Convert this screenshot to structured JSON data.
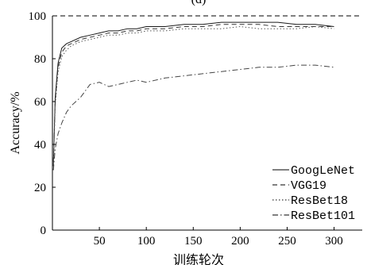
{
  "chart_data": {
    "type": "line",
    "title": "(d) ",
    "xlabel": "训练轮次",
    "ylabel": "Accuracy/%",
    "xlim": [
      0,
      330
    ],
    "ylim": [
      0,
      100
    ],
    "xticks": [
      50,
      100,
      150,
      200,
      250,
      300
    ],
    "yticks": [
      0,
      20,
      40,
      60,
      80,
      100
    ],
    "grid": false,
    "legend": "right",
    "reference_line": {
      "y": 100,
      "style": "dashed"
    },
    "series": [
      {
        "name": "GoogLeNet",
        "style": "solid",
        "x": [
          1,
          3,
          6,
          10,
          15,
          20,
          30,
          40,
          50,
          60,
          70,
          80,
          90,
          100,
          120,
          140,
          160,
          180,
          200,
          220,
          240,
          260,
          280,
          300
        ],
        "y": [
          30,
          62,
          78,
          85,
          87,
          88,
          90,
          91,
          92,
          93,
          93,
          94,
          94,
          95,
          95,
          96,
          96,
          97,
          97,
          97,
          97,
          96,
          96,
          95
        ]
      },
      {
        "name": "VGG19",
        "style": "dashed",
        "x": [
          1,
          3,
          6,
          10,
          15,
          20,
          30,
          40,
          50,
          60,
          70,
          80,
          90,
          100,
          120,
          140,
          160,
          180,
          200,
          220,
          240,
          260,
          280,
          300
        ],
        "y": [
          32,
          60,
          76,
          83,
          86,
          87,
          89,
          90,
          91,
          92,
          92,
          93,
          93,
          94,
          94,
          95,
          95,
          96,
          96,
          96,
          95,
          95,
          95,
          95
        ]
      },
      {
        "name": "ResBet18",
        "style": "dotted",
        "x": [
          1,
          3,
          6,
          10,
          15,
          20,
          30,
          40,
          50,
          60,
          70,
          80,
          90,
          100,
          120,
          140,
          160,
          180,
          200,
          220,
          240,
          260,
          280,
          300
        ],
        "y": [
          28,
          58,
          74,
          81,
          84,
          86,
          88,
          89,
          90,
          91,
          91,
          92,
          92,
          93,
          93,
          94,
          94,
          94,
          95,
          94,
          94,
          94,
          95,
          94
        ]
      },
      {
        "name": "ResBet101",
        "style": "dashdot",
        "x": [
          1,
          3,
          6,
          10,
          15,
          20,
          30,
          40,
          50,
          60,
          70,
          80,
          90,
          100,
          120,
          140,
          160,
          180,
          200,
          220,
          240,
          260,
          280,
          300
        ],
        "y": [
          28,
          38,
          45,
          50,
          55,
          58,
          62,
          68,
          69,
          67,
          68,
          69,
          70,
          69,
          71,
          72,
          73,
          74,
          75,
          76,
          76,
          77,
          77,
          76
        ]
      }
    ]
  }
}
